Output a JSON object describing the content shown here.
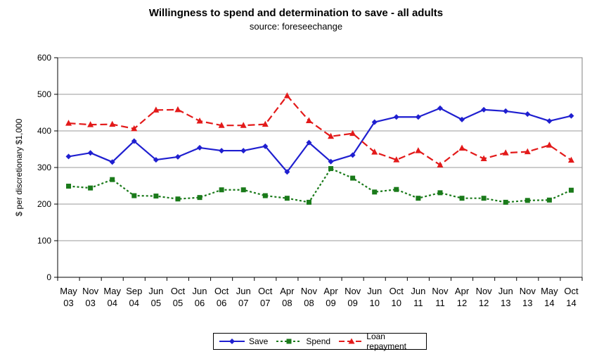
{
  "chart_data": {
    "type": "line",
    "title": "Willingness to spend and determination to save - all adults",
    "subtitle": "source: foreseechange",
    "xlabel": "",
    "ylabel": "$ per discretionary $1,000",
    "ylim": [
      0,
      600
    ],
    "yticks": [
      0,
      100,
      200,
      300,
      400,
      500,
      600
    ],
    "grid": "horizontal",
    "legend_position": "bottom",
    "categories": [
      [
        "May",
        "03"
      ],
      [
        "Nov",
        "03"
      ],
      [
        "May",
        "04"
      ],
      [
        "Sep",
        "04"
      ],
      [
        "Jun",
        "05"
      ],
      [
        "Oct",
        "05"
      ],
      [
        "Jun",
        "06"
      ],
      [
        "Oct",
        "06"
      ],
      [
        "Jun",
        "07"
      ],
      [
        "Oct",
        "07"
      ],
      [
        "Apr",
        "08"
      ],
      [
        "Nov",
        "08"
      ],
      [
        "Apr",
        "09"
      ],
      [
        "Nov",
        "09"
      ],
      [
        "Jun",
        "10"
      ],
      [
        "Oct",
        "10"
      ],
      [
        "Jun",
        "11"
      ],
      [
        "Nov",
        "11"
      ],
      [
        "Apr",
        "12"
      ],
      [
        "Nov",
        "12"
      ],
      [
        "Jun",
        "13"
      ],
      [
        "Nov",
        "13"
      ],
      [
        "May",
        "14"
      ],
      [
        "Oct",
        "14"
      ]
    ],
    "series": [
      {
        "name": "Save",
        "color": "#1f1fd0",
        "marker": "diamond",
        "dash": "solid",
        "values": [
          330,
          340,
          315,
          372,
          321,
          329,
          354,
          346,
          346,
          358,
          288,
          368,
          316,
          334,
          424,
          438,
          438,
          462,
          431,
          458,
          454,
          446,
          427,
          441
        ]
      },
      {
        "name": "Spend",
        "color": "#1a7a1a",
        "marker": "square",
        "dash": "dotted",
        "values": [
          249,
          244,
          267,
          223,
          222,
          214,
          218,
          239,
          239,
          223,
          216,
          205,
          297,
          271,
          233,
          240,
          216,
          231,
          216,
          216,
          205,
          210,
          211,
          238
        ]
      },
      {
        "name": "Loan repayment",
        "color": "#e31a1a",
        "marker": "triangle",
        "dash": "dashed",
        "values": [
          421,
          417,
          418,
          406,
          457,
          458,
          427,
          415,
          415,
          418,
          496,
          428,
          385,
          393,
          342,
          321,
          346,
          307,
          353,
          324,
          340,
          343,
          361,
          320
        ]
      }
    ]
  }
}
